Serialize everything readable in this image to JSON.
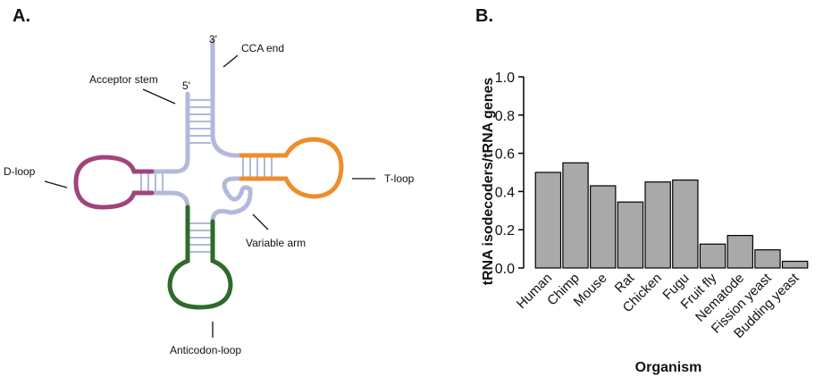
{
  "panels": [
    "A.",
    "B."
  ],
  "diagram": {
    "three_prime": "3'",
    "five_prime": "5'",
    "cca_end": "CCA end",
    "acceptor_stem": "Acceptor stem",
    "d_loop": "D-loop",
    "t_loop": "T-loop",
    "variable_arm": "Variable arm",
    "anticodon_loop": "Anticodon-loop"
  },
  "chart_data": {
    "type": "bar",
    "x_label": "Organism",
    "y_label": "tRNA isodecoders/tRNA genes",
    "categories": [
      "Human",
      "Chimp",
      "Mouse",
      "Rat",
      "Chicken",
      "Fugu",
      "Fruit fly",
      "Nematode",
      "Fission yeast",
      "Budding yeast"
    ],
    "values": [
      0.5,
      0.55,
      0.43,
      0.345,
      0.45,
      0.46,
      0.125,
      0.17,
      0.095,
      0.035
    ],
    "color": "#a9a9a9",
    "ylim": [
      0,
      1
    ],
    "yticks": [
      {
        "value": 0,
        "label": "0.0"
      },
      0.2,
      0.4,
      0.6,
      0.8,
      {
        "value": 1,
        "label": "1.0"
      }
    ],
    "grid": false
  }
}
